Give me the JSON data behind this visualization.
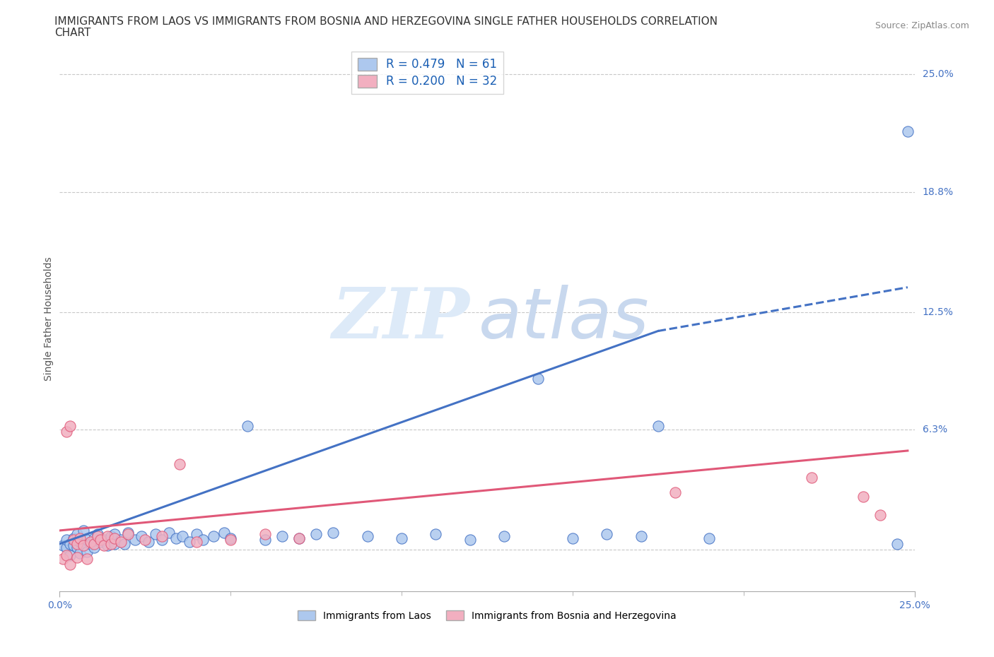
{
  "title_line1": "IMMIGRANTS FROM LAOS VS IMMIGRANTS FROM BOSNIA AND HERZEGOVINA SINGLE FATHER HOUSEHOLDS CORRELATION",
  "title_line2": "CHART",
  "source_text": "Source: ZipAtlas.com",
  "ylabel": "Single Father Households",
  "xlabel_laos": "Immigrants from Laos",
  "xlabel_bosnia": "Immigrants from Bosnia and Herzegovina",
  "xlim": [
    0,
    0.25
  ],
  "ylim": [
    -0.022,
    0.265
  ],
  "r_laos": "0.479",
  "n_laos": "61",
  "r_bosnia": "0.200",
  "n_bosnia": "32",
  "color_laos": "#adc8ee",
  "color_bosnia": "#f2afc0",
  "line_color_laos": "#4472c4",
  "line_color_bosnia": "#e05878",
  "line_laos": [
    [
      0.0,
      0.003
    ],
    [
      0.175,
      0.115
    ]
  ],
  "line_laos_dash": [
    [
      0.175,
      0.115
    ],
    [
      0.248,
      0.138
    ]
  ],
  "line_bosnia": [
    [
      0.0,
      0.01
    ],
    [
      0.248,
      0.052
    ]
  ],
  "scatter_laos": [
    [
      0.001,
      0.002
    ],
    [
      0.002,
      0.001
    ],
    [
      0.002,
      0.005
    ],
    [
      0.003,
      0.003
    ],
    [
      0.003,
      -0.003
    ],
    [
      0.004,
      0.002
    ],
    [
      0.004,
      0.006
    ],
    [
      0.005,
      0.001
    ],
    [
      0.005,
      0.008
    ],
    [
      0.006,
      0.004
    ],
    [
      0.006,
      -0.002
    ],
    [
      0.007,
      0.003
    ],
    [
      0.007,
      0.01
    ],
    [
      0.008,
      0.005
    ],
    [
      0.008,
      -0.001
    ],
    [
      0.009,
      0.003
    ],
    [
      0.01,
      0.006
    ],
    [
      0.01,
      0.001
    ],
    [
      0.011,
      0.008
    ],
    [
      0.012,
      0.004
    ],
    [
      0.013,
      0.005
    ],
    [
      0.014,
      0.002
    ],
    [
      0.015,
      0.007
    ],
    [
      0.016,
      0.003
    ],
    [
      0.016,
      0.008
    ],
    [
      0.018,
      0.005
    ],
    [
      0.019,
      0.003
    ],
    [
      0.02,
      0.009
    ],
    [
      0.022,
      0.005
    ],
    [
      0.024,
      0.007
    ],
    [
      0.026,
      0.004
    ],
    [
      0.028,
      0.008
    ],
    [
      0.03,
      0.005
    ],
    [
      0.032,
      0.009
    ],
    [
      0.034,
      0.006
    ],
    [
      0.036,
      0.007
    ],
    [
      0.038,
      0.004
    ],
    [
      0.04,
      0.008
    ],
    [
      0.042,
      0.005
    ],
    [
      0.045,
      0.007
    ],
    [
      0.048,
      0.009
    ],
    [
      0.05,
      0.006
    ],
    [
      0.055,
      0.065
    ],
    [
      0.06,
      0.005
    ],
    [
      0.065,
      0.007
    ],
    [
      0.07,
      0.006
    ],
    [
      0.075,
      0.008
    ],
    [
      0.08,
      0.009
    ],
    [
      0.09,
      0.007
    ],
    [
      0.1,
      0.006
    ],
    [
      0.11,
      0.008
    ],
    [
      0.12,
      0.005
    ],
    [
      0.13,
      0.007
    ],
    [
      0.14,
      0.09
    ],
    [
      0.15,
      0.006
    ],
    [
      0.16,
      0.008
    ],
    [
      0.17,
      0.007
    ],
    [
      0.175,
      0.065
    ],
    [
      0.19,
      0.006
    ],
    [
      0.245,
      0.003
    ],
    [
      0.248,
      0.22
    ]
  ],
  "scatter_bosnia": [
    [
      0.001,
      -0.005
    ],
    [
      0.002,
      -0.003
    ],
    [
      0.002,
      0.062
    ],
    [
      0.003,
      0.065
    ],
    [
      0.003,
      -0.008
    ],
    [
      0.004,
      0.005
    ],
    [
      0.005,
      0.003
    ],
    [
      0.005,
      -0.004
    ],
    [
      0.006,
      0.006
    ],
    [
      0.007,
      0.002
    ],
    [
      0.008,
      -0.005
    ],
    [
      0.009,
      0.004
    ],
    [
      0.01,
      0.003
    ],
    [
      0.011,
      0.007
    ],
    [
      0.012,
      0.005
    ],
    [
      0.013,
      0.002
    ],
    [
      0.014,
      0.007
    ],
    [
      0.015,
      0.003
    ],
    [
      0.016,
      0.006
    ],
    [
      0.018,
      0.004
    ],
    [
      0.02,
      0.008
    ],
    [
      0.025,
      0.005
    ],
    [
      0.03,
      0.007
    ],
    [
      0.035,
      0.045
    ],
    [
      0.04,
      0.004
    ],
    [
      0.05,
      0.005
    ],
    [
      0.06,
      0.008
    ],
    [
      0.07,
      0.006
    ],
    [
      0.18,
      0.03
    ],
    [
      0.22,
      0.038
    ],
    [
      0.235,
      0.028
    ],
    [
      0.24,
      0.018
    ]
  ],
  "watermark_zip": "ZIP",
  "watermark_atlas": "atlas",
  "background_color": "#ffffff",
  "grid_color": "#c8c8c8",
  "title_fontsize": 11,
  "tick_fontsize": 10,
  "label_fontsize": 10,
  "source_fontsize": 9,
  "legend_fontsize": 11
}
